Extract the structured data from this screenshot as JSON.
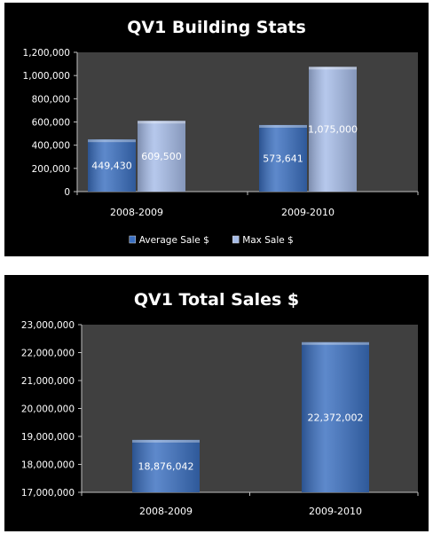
{
  "chart_data": [
    {
      "type": "bar",
      "title": "QV1 Building Stats",
      "categories": [
        "2008-2009",
        "2009-2010"
      ],
      "series": [
        {
          "name": "Average Sale $",
          "values": [
            449430,
            573641
          ],
          "labels": [
            "449,430",
            "573,641"
          ],
          "color": "#3a6fc0"
        },
        {
          "name": "Max Sale $",
          "values": [
            609500,
            1075000
          ],
          "labels": [
            "609,500",
            "1,075,000"
          ],
          "color": "#a6bce8"
        }
      ],
      "ylim": [
        0,
        1200000
      ],
      "yticks": [
        0,
        200000,
        400000,
        600000,
        800000,
        1000000,
        1200000
      ],
      "ytick_labels": [
        "0",
        "200,000",
        "400,000",
        "600,000",
        "800,000",
        "1,000,000",
        "1,200,000"
      ],
      "grid": false,
      "legend": "bottom",
      "plot_background": "#404040"
    },
    {
      "type": "bar",
      "title": "QV1 Total Sales $",
      "categories": [
        "2008-2009",
        "2009-2010"
      ],
      "series": [
        {
          "values": [
            18876042,
            22372002
          ],
          "labels": [
            "18,876,042",
            "22,372,002"
          ],
          "color": "#3a6fc0"
        }
      ],
      "ylim": [
        17000000,
        23000000
      ],
      "yticks": [
        17000000,
        18000000,
        19000000,
        20000000,
        21000000,
        22000000,
        23000000
      ],
      "ytick_labels": [
        "17,000,000",
        "18,000,000",
        "19,000,000",
        "20,000,000",
        "21,000,000",
        "22,000,000",
        "23,000,000"
      ],
      "grid": false,
      "legend": "none",
      "plot_background": "#404040"
    }
  ]
}
